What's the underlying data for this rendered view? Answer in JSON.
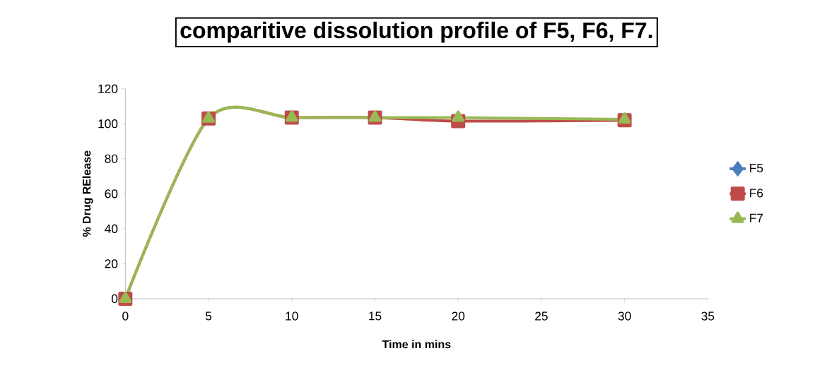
{
  "chart_data": {
    "type": "line",
    "title": "comparitive dissolution profile of F5, F6, F7.",
    "xlabel": "Time in mins",
    "ylabel": "% Drug RElease",
    "x": [
      0,
      5,
      10,
      15,
      20,
      30
    ],
    "series": [
      {
        "name": "F5",
        "color": "#4a7ebb",
        "marker": "diamond",
        "values": [
          null,
          null,
          null,
          null,
          null,
          null
        ]
      },
      {
        "name": "F6",
        "color": "#be4b48",
        "marker": "square",
        "values": [
          0,
          103,
          103.5,
          103.5,
          101.5,
          102
        ]
      },
      {
        "name": "F7",
        "color": "#98b954",
        "marker": "triangle",
        "values": [
          0,
          103,
          103.5,
          103.5,
          103.5,
          102.5
        ]
      }
    ],
    "xlim": [
      0,
      35
    ],
    "xticks": [
      0,
      5,
      10,
      15,
      20,
      25,
      30,
      35
    ],
    "ylim": [
      0,
      120
    ],
    "yticks": [
      0,
      20,
      40,
      60,
      80,
      100,
      120
    ],
    "grid": false,
    "legend": "right",
    "line_style": "solid"
  }
}
